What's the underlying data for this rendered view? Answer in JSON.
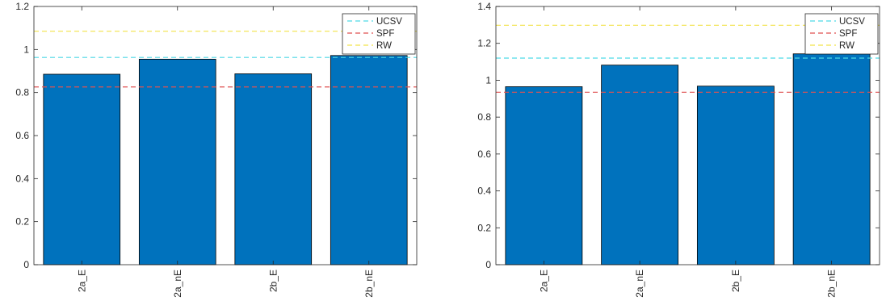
{
  "chart_data": [
    {
      "type": "bar",
      "categories": [
        "2a_E",
        "2a_nE",
        "2b_E",
        "2b_nE"
      ],
      "values": [
        0.885,
        0.955,
        0.887,
        0.972
      ],
      "ylim": [
        0,
        1.2
      ],
      "yticks": [
        "0",
        "0.2",
        "0.4",
        "0.6",
        "0.8",
        "1",
        "1.2"
      ],
      "ytick_values": [
        0,
        0.2,
        0.4,
        0.6,
        0.8,
        1.0,
        1.2
      ],
      "bar_color": "#0072bd",
      "reference_lines": [
        {
          "name": "UCSV",
          "value": 0.963,
          "color": "#4dd9e6"
        },
        {
          "name": "SPF",
          "value": 0.826,
          "color": "#e05252"
        },
        {
          "name": "RW",
          "value": 1.085,
          "color": "#f2e34a"
        }
      ],
      "legend": "top-right",
      "grid": false
    },
    {
      "type": "bar",
      "categories": [
        "2a_E",
        "2a_nE",
        "2b_E",
        "2b_nE"
      ],
      "values": [
        0.965,
        1.082,
        0.968,
        1.143
      ],
      "ylim": [
        0,
        1.4
      ],
      "yticks": [
        "0",
        "0.2",
        "0.4",
        "0.6",
        "0.8",
        "1",
        "1.2",
        "1.4"
      ],
      "ytick_values": [
        0,
        0.2,
        0.4,
        0.6,
        0.8,
        1.0,
        1.2,
        1.4
      ],
      "bar_color": "#0072bd",
      "reference_lines": [
        {
          "name": "UCSV",
          "value": 1.12,
          "color": "#4dd9e6"
        },
        {
          "name": "SPF",
          "value": 0.935,
          "color": "#e05252"
        },
        {
          "name": "RW",
          "value": 1.298,
          "color": "#f2e34a"
        }
      ],
      "legend": "top-right",
      "grid": false
    }
  ]
}
